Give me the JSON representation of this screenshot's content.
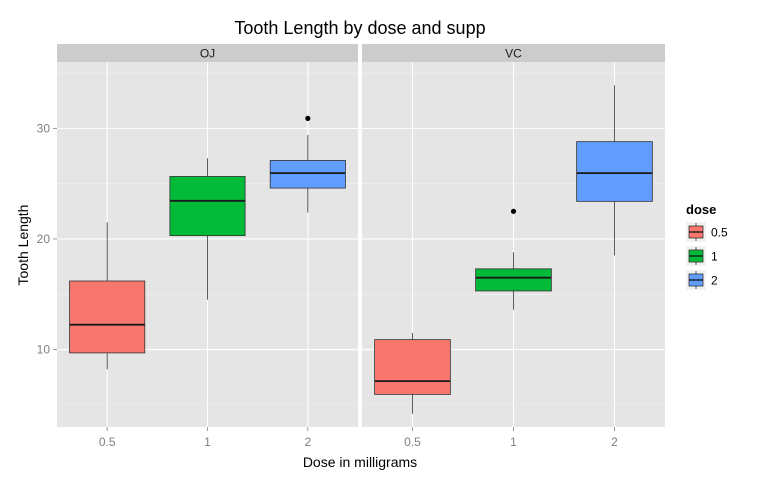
{
  "chart_data": {
    "type": "boxplot",
    "title": "Tooth Length by dose and supp",
    "xlabel": "Dose in milligrams",
    "ylabel": "Tooth Length",
    "ylim": [
      3,
      36
    ],
    "yticks": [
      10,
      20,
      30
    ],
    "categories": [
      "0.5",
      "1",
      "2"
    ],
    "legend": {
      "title": "dose",
      "placement": "right",
      "items": [
        {
          "label": "0.5",
          "color": "#F8766D"
        },
        {
          "label": "1",
          "color": "#00BA38"
        },
        {
          "label": "2",
          "color": "#619CFF"
        }
      ]
    },
    "panels": [
      {
        "name": "OJ",
        "boxes": [
          {
            "dose": "0.5",
            "min": 8.2,
            "q1": 9.7,
            "median": 12.25,
            "q3": 16.2,
            "max": 21.5,
            "outliers": []
          },
          {
            "dose": "1",
            "min": 14.5,
            "q1": 20.3,
            "median": 23.45,
            "q3": 25.65,
            "max": 27.3,
            "outliers": []
          },
          {
            "dose": "2",
            "min": 22.4,
            "q1": 24.6,
            "median": 25.95,
            "q3": 27.1,
            "max": 29.4,
            "outliers": [
              30.9
            ]
          }
        ]
      },
      {
        "name": "VC",
        "boxes": [
          {
            "dose": "0.5",
            "min": 4.2,
            "q1": 5.95,
            "median": 7.15,
            "q3": 10.9,
            "max": 11.5,
            "outliers": []
          },
          {
            "dose": "1",
            "min": 13.6,
            "q1": 15.3,
            "median": 16.5,
            "q3": 17.3,
            "max": 18.8,
            "outliers": [
              22.5
            ]
          },
          {
            "dose": "2",
            "min": 18.5,
            "q1": 23.4,
            "median": 25.95,
            "q3": 28.8,
            "max": 33.9,
            "outliers": []
          }
        ]
      }
    ]
  }
}
